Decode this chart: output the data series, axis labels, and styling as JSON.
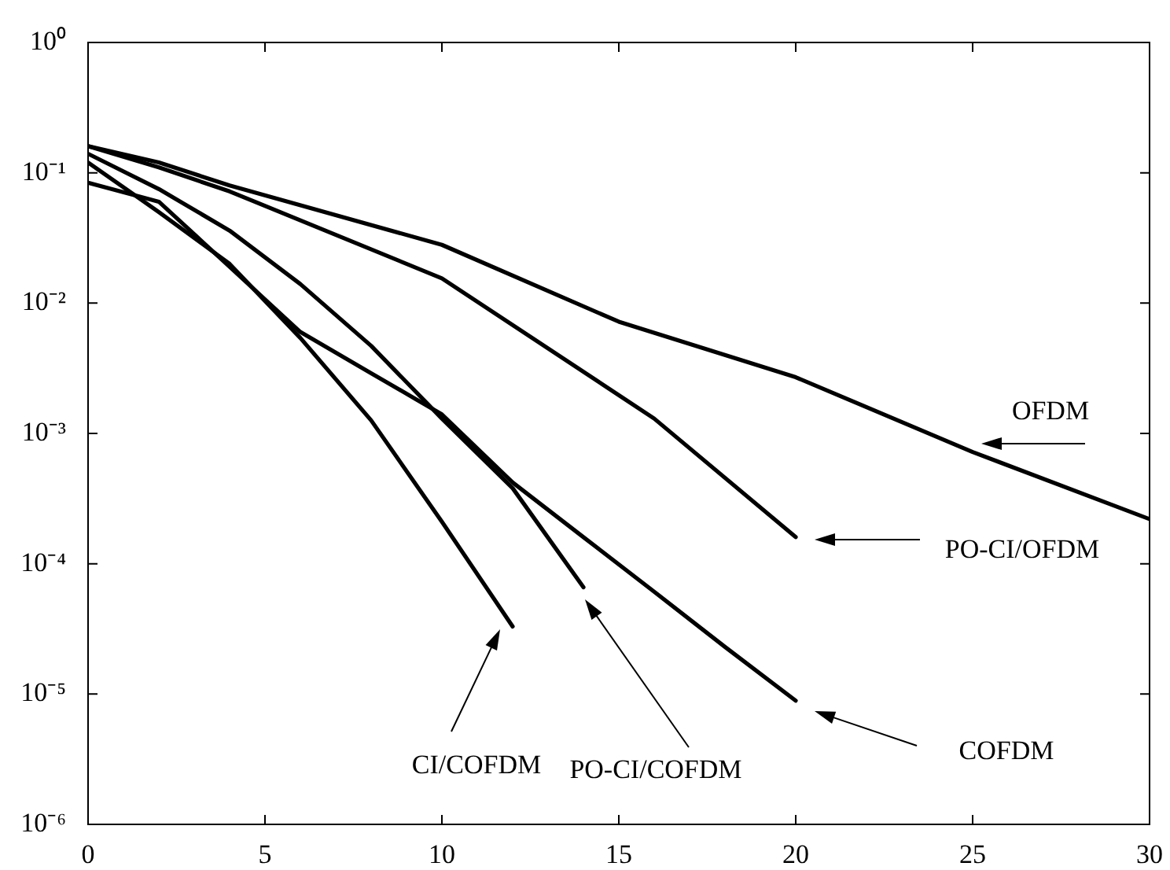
{
  "chart_data": {
    "type": "line",
    "series": [
      {
        "color": "#000000",
        "x": [
          0,
          2,
          4,
          10,
          15,
          20,
          25,
          30
        ],
        "values": [
          0.16,
          0.12,
          0.08,
          0.028,
          0.0072,
          0.0027,
          0.00072,
          0.00022
        ]
      },
      {
        "color": "#000000",
        "x": [
          0,
          2,
          4,
          10,
          16,
          20
        ],
        "values": [
          0.16,
          0.11,
          0.072,
          0.0155,
          0.0013,
          0.00016
        ]
      },
      {
        "color": "#000000",
        "x": [
          0,
          2,
          4,
          6,
          8,
          10,
          12,
          14,
          16,
          18,
          20
        ],
        "values": [
          0.084,
          0.06,
          0.019,
          0.006,
          0.0029,
          0.0014,
          0.00042,
          0.00016,
          6.1e-05,
          2.3e-05,
          8.9e-06
        ]
      },
      {
        "color": "#000000",
        "x": [
          0,
          2,
          4,
          6,
          8,
          10,
          12,
          14
        ],
        "values": [
          0.14,
          0.075,
          0.036,
          0.014,
          0.0047,
          0.0013,
          0.00038,
          6.6e-05
        ]
      },
      {
        "color": "#000000",
        "x": [
          0,
          2,
          4,
          6,
          8,
          10,
          12
        ],
        "values": [
          0.12,
          0.05,
          0.02,
          0.0054,
          0.00126,
          0.00021,
          3.3e-05
        ]
      }
    ],
    "log": "y",
    "xlim": [
      0,
      30
    ],
    "xticks": [
      0,
      5,
      10,
      15,
      20,
      25,
      30
    ],
    "ylim": [
      1e-06,
      1
    ],
    "yticks": [
      {
        "value": 1e-06,
        "label": "10⁻⁶"
      },
      {
        "value": 1e-05,
        "label": "10⁻⁵"
      },
      {
        "value": 0.0001,
        "label": "10⁻⁴"
      },
      {
        "value": 0.001,
        "label": "10⁻³"
      },
      {
        "value": 0.01,
        "label": "10⁻²"
      },
      {
        "value": 0.1,
        "label": "10⁻¹"
      },
      {
        "value": 1,
        "label": "10⁰"
      }
    ],
    "annotations": [
      "OFDM",
      "PO-CI/OFDM",
      "COFDM",
      "PO-CI/COFDM",
      "CI/COFDM"
    ],
    "grid": false,
    "legend": false,
    "marker": "none",
    "line_style": "solid"
  }
}
